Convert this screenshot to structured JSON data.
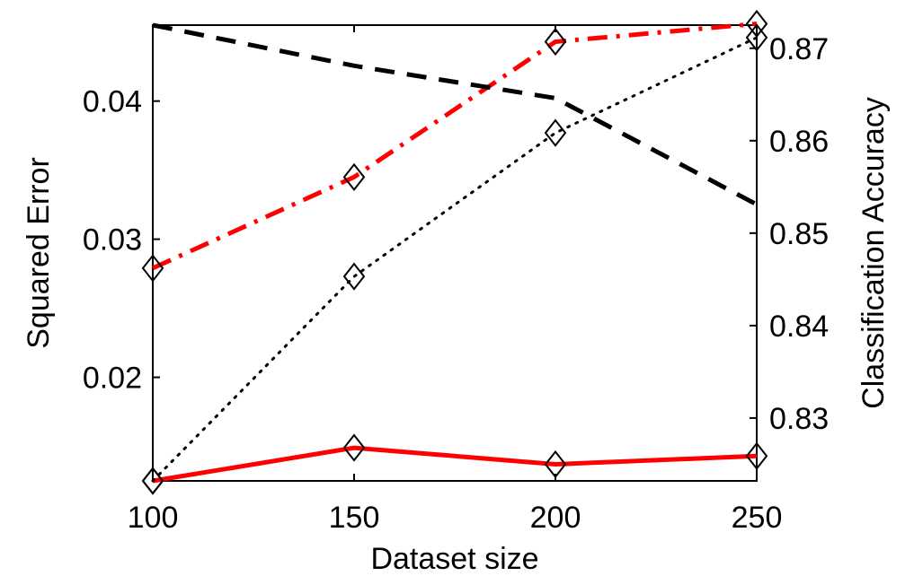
{
  "chart_data": {
    "type": "line",
    "x": [
      100,
      150,
      200,
      250
    ],
    "xlabel": "Dataset size",
    "ylabel_left": "Squared Error",
    "ylabel_right": "Classification Accuracy",
    "xlim": [
      100,
      250
    ],
    "ylim_left": [
      0.0125,
      0.0455
    ],
    "ylim_right": [
      0.8232,
      0.8725
    ],
    "x_ticks": [
      "100",
      "150",
      "200",
      "250"
    ],
    "y_ticks_left": [
      "0.02",
      "0.03",
      "0.04"
    ],
    "y_ticks_right": [
      "0.83",
      "0.84",
      "0.85",
      "0.86",
      "0.87"
    ],
    "y_tick_values_left": [
      0.02,
      0.03,
      0.04
    ],
    "y_tick_values_right": [
      0.83,
      0.84,
      0.85,
      0.86,
      0.87
    ],
    "grid": false,
    "legend": "none",
    "series": [
      {
        "axis": "left",
        "color": "#ff0000",
        "style": "solid",
        "marker": "diamond",
        "values": [
          0.0125,
          0.0149,
          0.0137,
          0.0143
        ]
      },
      {
        "axis": "left",
        "color": "#ff0000",
        "style": "dashdot",
        "marker": "diamond",
        "values": [
          0.0279,
          0.0345,
          0.0443,
          0.0456
        ]
      },
      {
        "axis": "left",
        "color": "#000000",
        "style": "dotted",
        "marker": "diamond",
        "values": [
          0.0125,
          0.0273,
          0.0377,
          0.0446
        ]
      },
      {
        "axis": "right",
        "color": "#000000",
        "style": "dashed",
        "marker": "none",
        "values": [
          0.8725,
          0.8681,
          0.8646,
          0.8531
        ]
      }
    ]
  }
}
